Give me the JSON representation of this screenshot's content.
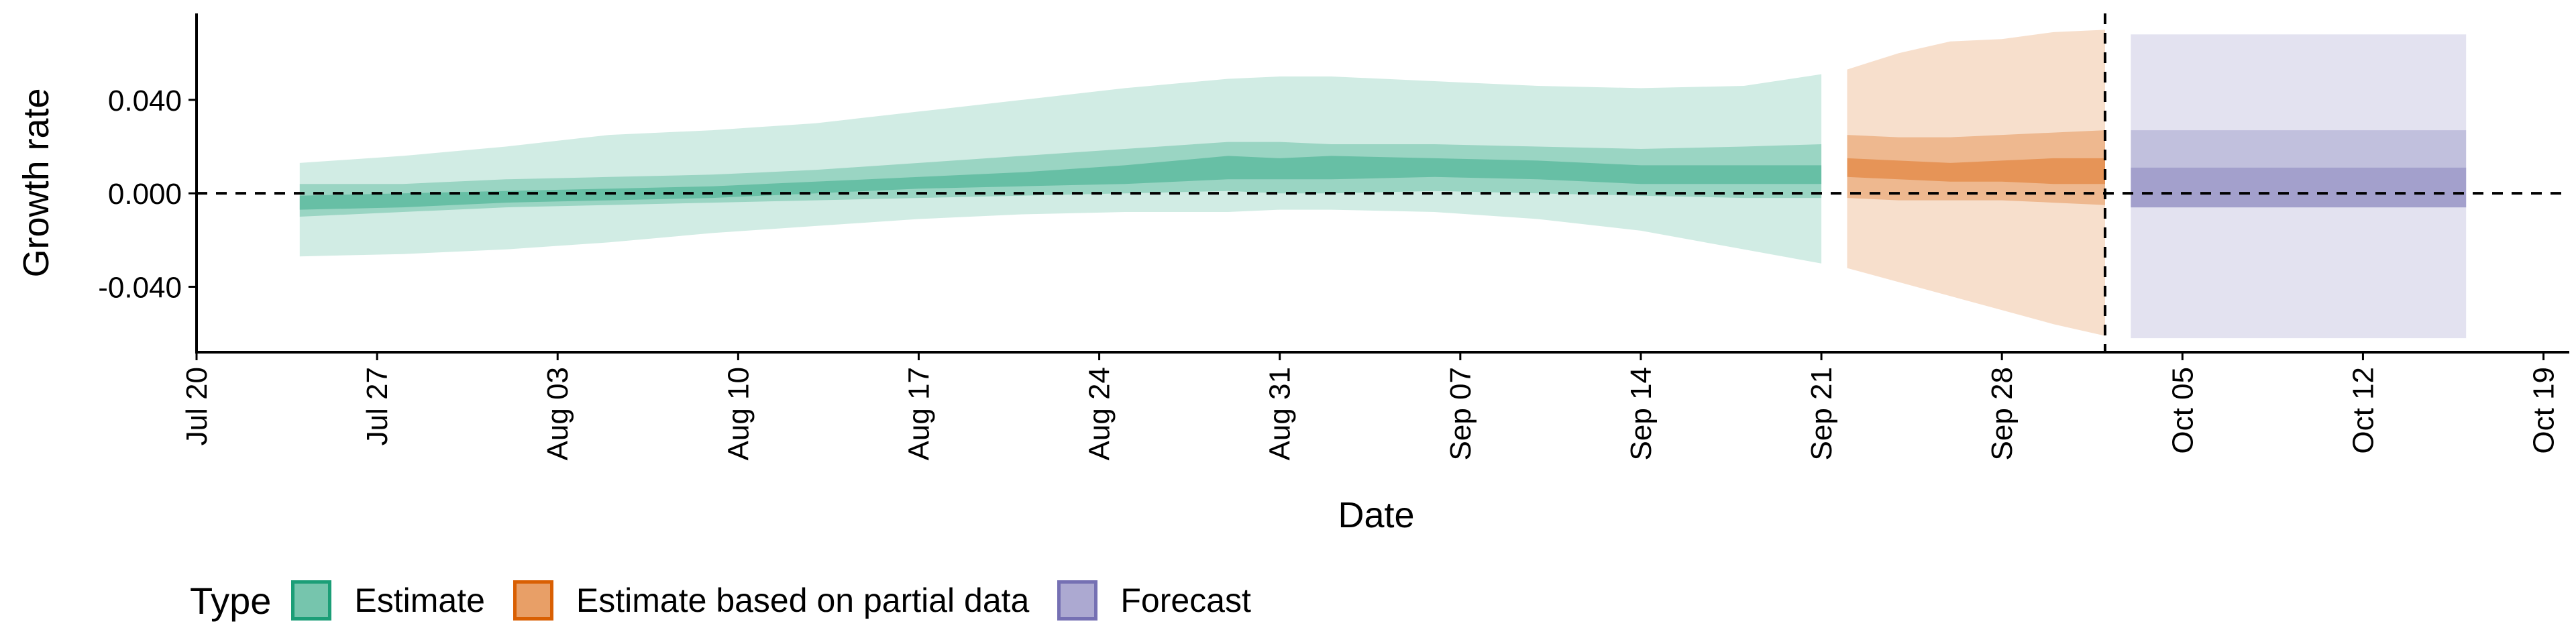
{
  "chart_data": {
    "type": "area",
    "xlabel": "Date",
    "ylabel": "Growth rate",
    "x_ticks": [
      "Jul 20",
      "Jul 27",
      "Aug 03",
      "Aug 10",
      "Aug 17",
      "Aug 24",
      "Aug 31",
      "Sep 07",
      "Sep 14",
      "Sep 21",
      "Sep 28",
      "Oct 05",
      "Oct 12",
      "Oct 19"
    ],
    "x_range": [
      "2020-07-20",
      "2020-10-20"
    ],
    "y_ticks": [
      -0.04,
      0.0,
      0.04
    ],
    "y_tick_labels": [
      "-0.040",
      "0.000",
      "0.040"
    ],
    "ylim": [
      -0.068,
      0.077
    ],
    "reference_lines": {
      "horizontal_y": 0.0,
      "vertical_date": "2020-10-02"
    },
    "legend": {
      "title": "Type",
      "position": "bottom",
      "entries": [
        "Estimate",
        "Estimate based on partial data",
        "Forecast"
      ]
    },
    "colors": {
      "Estimate": "#1b9e77",
      "Estimate based on partial data": "#d95f02",
      "Forecast": "#7570b3"
    },
    "series": [
      {
        "name": "Estimate",
        "dates": [
          "2020-07-24",
          "2020-07-28",
          "2020-08-01",
          "2020-08-05",
          "2020-08-09",
          "2020-08-13",
          "2020-08-17",
          "2020-08-21",
          "2020-08-25",
          "2020-08-29",
          "2020-08-31",
          "2020-09-02",
          "2020-09-06",
          "2020-09-10",
          "2020-09-14",
          "2020-09-18",
          "2020-09-21"
        ],
        "median": [
          -0.004,
          -0.003,
          -0.002,
          -0.001,
          0.0,
          0.002,
          0.004,
          0.006,
          0.008,
          0.012,
          0.01,
          0.011,
          0.011,
          0.01,
          0.008,
          0.008,
          0.008
        ],
        "lower_20": [
          -0.007,
          -0.006,
          -0.004,
          -0.003,
          -0.002,
          0.0,
          0.002,
          0.003,
          0.004,
          0.006,
          0.006,
          0.006,
          0.007,
          0.006,
          0.004,
          0.004,
          0.004
        ],
        "upper_20": [
          -0.001,
          0.0,
          0.001,
          0.002,
          0.003,
          0.005,
          0.007,
          0.009,
          0.012,
          0.016,
          0.015,
          0.016,
          0.015,
          0.014,
          0.012,
          0.012,
          0.012
        ],
        "lower_50": [
          -0.01,
          -0.008,
          -0.006,
          -0.005,
          -0.004,
          -0.003,
          -0.002,
          -0.001,
          0.0,
          0.001,
          0.0,
          0.0,
          0.001,
          0.0,
          -0.001,
          -0.002,
          -0.002
        ],
        "upper_50": [
          0.004,
          0.004,
          0.006,
          0.007,
          0.008,
          0.01,
          0.013,
          0.016,
          0.019,
          0.022,
          0.022,
          0.021,
          0.021,
          0.02,
          0.019,
          0.02,
          0.021
        ],
        "lower_90": [
          -0.027,
          -0.026,
          -0.024,
          -0.021,
          -0.017,
          -0.014,
          -0.011,
          -0.009,
          -0.008,
          -0.008,
          -0.007,
          -0.007,
          -0.008,
          -0.011,
          -0.016,
          -0.024,
          -0.03
        ],
        "upper_90": [
          0.013,
          0.016,
          0.02,
          0.025,
          0.027,
          0.03,
          0.035,
          0.04,
          0.045,
          0.049,
          0.05,
          0.05,
          0.048,
          0.046,
          0.045,
          0.046,
          0.051
        ]
      },
      {
        "name": "Estimate based on partial data",
        "dates": [
          "2020-09-22",
          "2020-09-24",
          "2020-09-26",
          "2020-09-28",
          "2020-09-30",
          "2020-10-02"
        ],
        "median": [
          0.011,
          0.01,
          0.009,
          0.01,
          0.01,
          0.01
        ],
        "lower_20": [
          0.007,
          0.006,
          0.005,
          0.005,
          0.004,
          0.004
        ],
        "upper_20": [
          0.015,
          0.014,
          0.013,
          0.014,
          0.015,
          0.015
        ],
        "lower_50": [
          -0.002,
          -0.003,
          -0.003,
          -0.003,
          -0.004,
          -0.005
        ],
        "upper_50": [
          0.025,
          0.024,
          0.024,
          0.025,
          0.026,
          0.027
        ],
        "lower_90": [
          -0.032,
          -0.038,
          -0.044,
          -0.05,
          -0.056,
          -0.061
        ],
        "upper_90": [
          0.053,
          0.06,
          0.065,
          0.066,
          0.069,
          0.07
        ]
      },
      {
        "name": "Forecast",
        "dates": [
          "2020-10-03",
          "2020-10-16"
        ],
        "median": [
          0.01,
          0.01
        ],
        "lower_20": [
          -0.006,
          -0.006
        ],
        "upper_20": [
          0.011,
          0.011
        ],
        "lower_50": [
          -0.006,
          -0.006
        ],
        "upper_50": [
          0.027,
          0.027
        ],
        "lower_90": [
          -0.062,
          -0.062
        ],
        "upper_90": [
          0.068,
          0.068
        ]
      }
    ]
  }
}
